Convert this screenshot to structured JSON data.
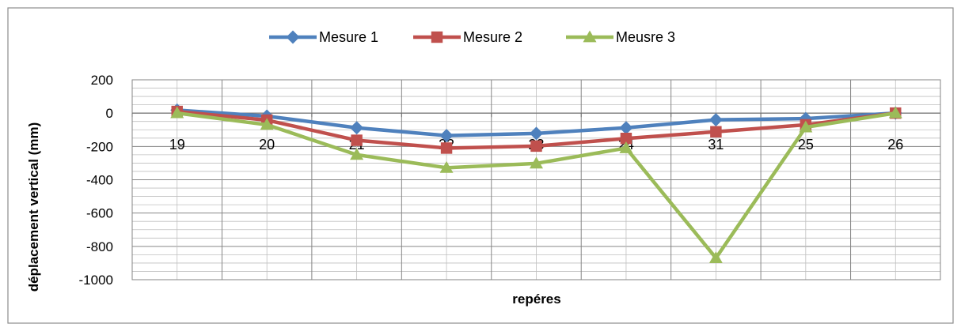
{
  "chart_data": {
    "type": "line",
    "categories": [
      "19",
      "20",
      "21",
      "22",
      "23",
      "24",
      "31",
      "25",
      "26"
    ],
    "series": [
      {
        "name": "Mesure 1",
        "color": "#4F81BD",
        "marker": "diamond",
        "values": [
          18,
          -18,
          -88,
          -135,
          -122,
          -88,
          -40,
          -33,
          0
        ]
      },
      {
        "name": "Mesure 2",
        "color": "#C0504D",
        "marker": "square",
        "values": [
          10,
          -42,
          -163,
          -210,
          -198,
          -152,
          -112,
          -70,
          0
        ]
      },
      {
        "name": "Meusre 3",
        "color": "#9BBB59",
        "marker": "triangle",
        "values": [
          0,
          -70,
          -250,
          -328,
          -302,
          -210,
          -870,
          -85,
          0
        ]
      }
    ],
    "ylabel": "déplacement vertical (mm)",
    "xlabel": "repéres",
    "ylim": [
      -1000,
      200
    ],
    "yticks": [
      -1000,
      -800,
      -600,
      -400,
      -200,
      0,
      200
    ],
    "y_minor_step": 50,
    "grid": true,
    "legend": "top"
  }
}
